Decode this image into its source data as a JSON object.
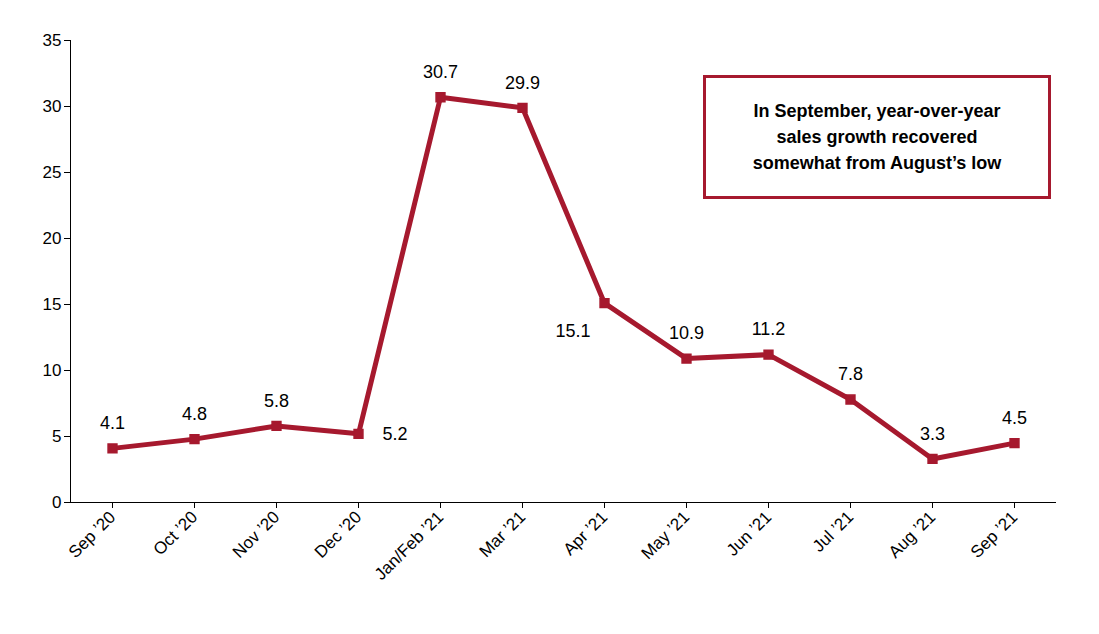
{
  "chart_data": {
    "type": "line",
    "categories": [
      "Sep ’20",
      "Oct ’20",
      "Nov ’20",
      "Dec ’20",
      "Jan/Feb ’21",
      "Mar ’21",
      "Apr ’21",
      "May ’21",
      "Jun ’21",
      "Jul ’21",
      "Aug ’21",
      "Sep ’21"
    ],
    "values": [
      4.1,
      4.8,
      5.8,
      5.2,
      30.7,
      29.9,
      15.1,
      10.9,
      11.2,
      7.8,
      3.3,
      4.5
    ],
    "color": "#a6192e",
    "marker": "square",
    "data_labels": true,
    "ylim": [
      0,
      35
    ],
    "yticks": [
      0,
      5,
      10,
      15,
      20,
      25,
      30,
      35
    ],
    "grid": false,
    "annotation": "In September, year-over-year\nsales growth recovered\nsomewhat from August’s low"
  }
}
